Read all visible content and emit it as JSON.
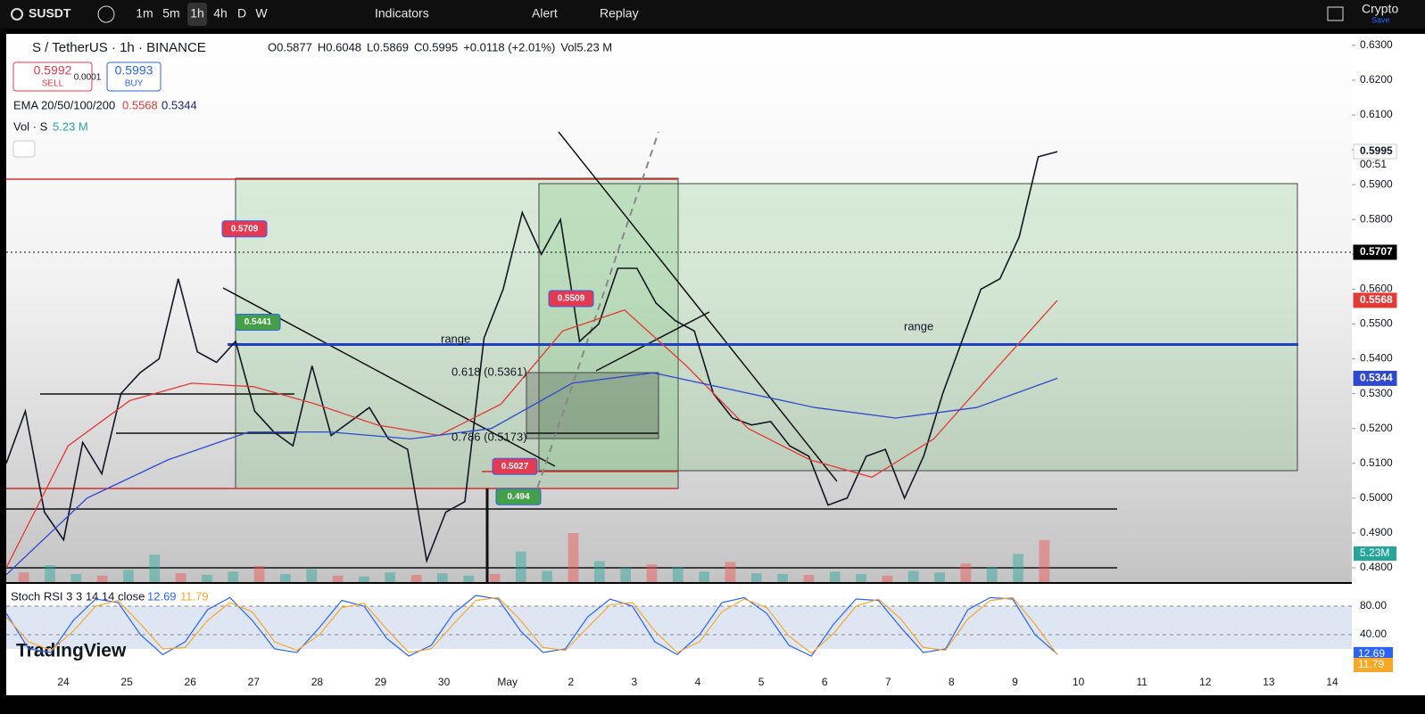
{
  "toolbar": {
    "symbol": "SUSDT",
    "intervals": [
      "1m",
      "5m",
      "1h",
      "4h",
      "D",
      "W"
    ],
    "indicators": "Indicators",
    "alert": "Alert",
    "replay": "Replay",
    "account": "Crypto",
    "save": "Save"
  },
  "legend": {
    "title": "S / TetherUS · 1h · BINANCE",
    "ohlc": [
      "O0.5877",
      "H0.6048",
      "L0.5869",
      "C0.5995",
      "+0.0118 (+2.01%)",
      "Vol5.23 M"
    ],
    "sell_price": "0.5992",
    "sell": "SELL",
    "spread": "0.0001",
    "buy_price": "0.5993",
    "buy": "BUY",
    "ema_label": "EMA 20/50/100/200",
    "ema_red": "0.5568",
    "ema_blue": "0.5344",
    "vol_label": "Vol · S",
    "vol_value": "5.23 M"
  },
  "chart_data": {
    "type": "line",
    "ylim": [
      0.4759,
      0.6333
    ],
    "yticks": [
      {
        "value": 0.63,
        "label": "0.6300"
      },
      {
        "value": 0.62,
        "label": "0.6200"
      },
      {
        "value": 0.61,
        "label": "0.6100"
      },
      {
        "value": 0.6,
        "label": "0.6000"
      },
      {
        "value": 0.59,
        "label": "0.5900"
      },
      {
        "value": 0.58,
        "label": "0.5800"
      },
      {
        "value": 0.57,
        "label": "0.5700"
      },
      {
        "value": 0.56,
        "label": "0.5600"
      },
      {
        "value": 0.55,
        "label": "0.5500"
      },
      {
        "value": 0.54,
        "label": "0.5400"
      },
      {
        "value": 0.53,
        "label": "0.5300"
      },
      {
        "value": 0.52,
        "label": "0.5200"
      },
      {
        "value": 0.51,
        "label": "0.5100"
      },
      {
        "value": 0.5,
        "label": "0.5000"
      },
      {
        "value": 0.49,
        "label": "0.4900"
      },
      {
        "value": 0.48,
        "label": "0.4800"
      }
    ],
    "x_labels": [
      "24",
      "25",
      "26",
      "27",
      "28",
      "29",
      "30",
      "May",
      "2",
      "3",
      "4",
      "5",
      "6",
      "7",
      "8",
      "9",
      "10",
      "11",
      "12",
      "13",
      "14"
    ],
    "series": [
      {
        "name": "S / TetherUS",
        "color": "#131722",
        "values": [
          0.51,
          0.525,
          0.496,
          0.488,
          0.516,
          0.507,
          0.53,
          0.536,
          0.54,
          0.563,
          0.542,
          0.539,
          0.545,
          0.525,
          0.519,
          0.515,
          0.538,
          0.518,
          0.522,
          0.526,
          0.517,
          0.514,
          0.482,
          0.496,
          0.499,
          0.546,
          0.56,
          0.582,
          0.57,
          0.58,
          0.545,
          0.55,
          0.566,
          0.566,
          0.556,
          0.551,
          0.548,
          0.53,
          0.523,
          0.521,
          0.522,
          0.515,
          0.512,
          0.498,
          0.5,
          0.512,
          0.514,
          0.5,
          0.512,
          0.53,
          0.545,
          0.56,
          0.563,
          0.575,
          0.598,
          0.5995
        ]
      },
      {
        "name": "EMA 50",
        "color": "#e53935",
        "values": [
          0.48,
          0.515,
          0.528,
          0.533,
          0.532,
          0.527,
          0.521,
          0.518,
          0.527,
          0.548,
          0.554,
          0.538,
          0.52,
          0.511,
          0.506,
          0.517,
          0.537,
          0.5568
        ]
      },
      {
        "name": "EMA 200",
        "color": "#2f49d1",
        "values": [
          0.478,
          0.5,
          0.511,
          0.519,
          0.519,
          0.517,
          0.52,
          0.533,
          0.536,
          0.531,
          0.526,
          0.523,
          0.526,
          0.5344
        ]
      }
    ],
    "volume": [
      1.2,
      2.1,
      1.0,
      0.8,
      1.5,
      3.4,
      1.1,
      0.9,
      1.3,
      2.0,
      1.0,
      1.6,
      0.8,
      0.7,
      1.2,
      0.9,
      1.1,
      0.8,
      1.0,
      3.8,
      1.4,
      6.1,
      2.6,
      1.8,
      2.2,
      1.9,
      1.3,
      2.5,
      1.1,
      1.0,
      0.9,
      1.3,
      1.0,
      0.8,
      1.4,
      1.2,
      2.3,
      1.9,
      3.5,
      5.23
    ],
    "price_labels": {
      "last": "0.5995",
      "timer": "00:51",
      "line": "0.5707",
      "ema_red": "0.5568",
      "ema_blue": "0.5344",
      "volume": "5.23M"
    },
    "level": 0.5441,
    "badges": [
      {
        "value": 0.5709,
        "color": "#e53950"
      },
      {
        "value": 0.5441,
        "color": "#43a047"
      },
      {
        "value": 0.5509,
        "color": "#e53950"
      },
      {
        "value": 0.5027,
        "color": "#e53950"
      },
      {
        "value": 0.494,
        "color": "#43a047"
      }
    ],
    "annotations": [
      "range",
      "range",
      "0.618 (0.5361)",
      "0.786 (0.5173)"
    ]
  },
  "stoch": {
    "title": "Stoch RSI 3 3 14 14 close",
    "k_label": "12.69",
    "d_label": "11.79",
    "ylim": [
      -10,
      110
    ],
    "yticks": [
      {
        "value": 80,
        "label": "80.00"
      },
      {
        "value": 40,
        "label": "40.00"
      }
    ],
    "k": [
      70,
      20,
      15,
      60,
      90,
      85,
      40,
      12,
      30,
      75,
      92,
      60,
      20,
      15,
      50,
      88,
      80,
      35,
      10,
      25,
      70,
      95,
      90,
      45,
      15,
      20,
      65,
      90,
      80,
      30,
      12,
      40,
      85,
      92,
      70,
      25,
      10,
      55,
      90,
      88,
      50,
      15,
      20,
      75,
      92,
      90,
      40,
      12.69
    ],
    "d": [
      65,
      30,
      18,
      45,
      80,
      88,
      55,
      20,
      22,
      60,
      85,
      72,
      30,
      18,
      40,
      78,
      84,
      48,
      15,
      20,
      55,
      88,
      92,
      60,
      22,
      18,
      50,
      82,
      85,
      45,
      15,
      30,
      72,
      90,
      78,
      38,
      14,
      42,
      80,
      90,
      62,
      22,
      18,
      62,
      88,
      92,
      55,
      11.79
    ],
    "brand": "TradingView"
  }
}
